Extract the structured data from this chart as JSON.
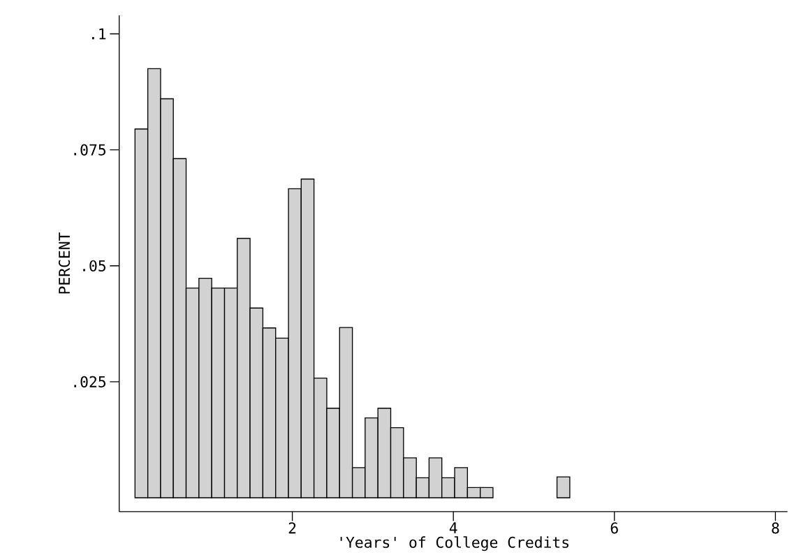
{
  "chart_data": {
    "type": "histogram",
    "xlabel": "'Years' of College Credits",
    "ylabel": "PERCENT",
    "bins": [
      0.046,
      0.205,
      0.364,
      0.522,
      0.681,
      0.84,
      0.999,
      1.158,
      1.316,
      1.475,
      1.634,
      1.793,
      1.952,
      2.11,
      2.269,
      2.428,
      2.587,
      2.746,
      2.904,
      3.063,
      3.222,
      3.381,
      3.54,
      3.698,
      3.857,
      4.016,
      4.175,
      4.334,
      4.492,
      4.651,
      4.81,
      4.969,
      5.128,
      5.287,
      5.446
    ],
    "values": [
      0.0795,
      0.0925,
      0.086,
      0.0731,
      0.0452,
      0.0473,
      0.0452,
      0.0452,
      0.0559,
      0.0409,
      0.0366,
      0.0344,
      0.0666,
      0.0687,
      0.0258,
      0.0193,
      0.0367,
      0.0065,
      0.0172,
      0.0193,
      0.0151,
      0.0086,
      0.0043,
      0.0086,
      0.0043,
      0.0065,
      0.0022,
      0.0022,
      0,
      0,
      0,
      0,
      0,
      0.0045
    ],
    "color": "#d2d2d2",
    "xlim": [
      -0.15,
      8.15
    ],
    "ylim": [
      -0.003,
      0.104
    ],
    "xticks": [
      2,
      4,
      6,
      8
    ],
    "yticks": [
      {
        "value": 0.025,
        "label": ".025"
      },
      {
        "value": 0.05,
        "label": ".05"
      },
      {
        "value": 0.075,
        "label": ".075"
      },
      {
        "value": 0.1,
        "label": ".1"
      }
    ],
    "grid": false
  }
}
